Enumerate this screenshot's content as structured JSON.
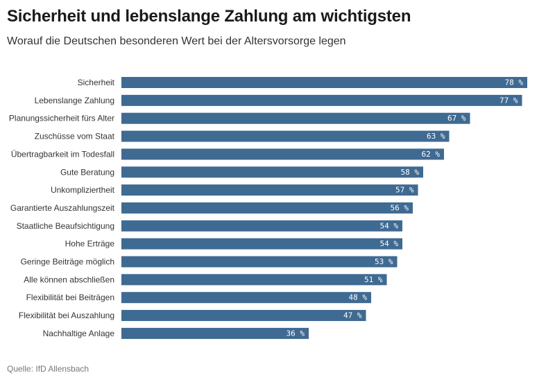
{
  "title": "Sicherheit und lebenslange Zahlung am wichtigsten",
  "subtitle": "Worauf die Deutschen besonderen Wert bei der Altersvorsorge legen",
  "source": "Quelle: IfD Allensbach",
  "colors": {
    "bar": "#3f6a92",
    "label_text": "#ffffff",
    "category_text": "#333333"
  },
  "chart_data": {
    "type": "bar",
    "orientation": "horizontal",
    "categories": [
      "Sicherheit",
      "Lebenslange Zahlung",
      "Planungssicherheit fürs Alter",
      "Zuschüsse vom Staat",
      "Übertragbarkeit im Todesfall",
      "Gute Beratung",
      "Unkompliziertheit",
      "Garantierte Auszahlungszeit",
      "Staatliche Beaufsichtigung",
      "Hohe Erträge",
      "Geringe Beiträge möglich",
      "Alle können abschließen",
      "Flexibilität bei Beiträgen",
      "Flexibilität bei Auszahlung",
      "Nachhaltige Anlage"
    ],
    "values": [
      78,
      77,
      67,
      63,
      62,
      58,
      57,
      56,
      54,
      54,
      53,
      51,
      48,
      47,
      36
    ],
    "value_labels": [
      "78 %",
      "77 %",
      "67 %",
      "63 %",
      "62 %",
      "58 %",
      "57 %",
      "56 %",
      "54 %",
      "54 %",
      "53 %",
      "51 %",
      "48 %",
      "47 %",
      "36 %"
    ],
    "unit": "%",
    "xlim": [
      0,
      80
    ],
    "grid": false,
    "legend": "none",
    "value_labels_position": "inside-end"
  }
}
